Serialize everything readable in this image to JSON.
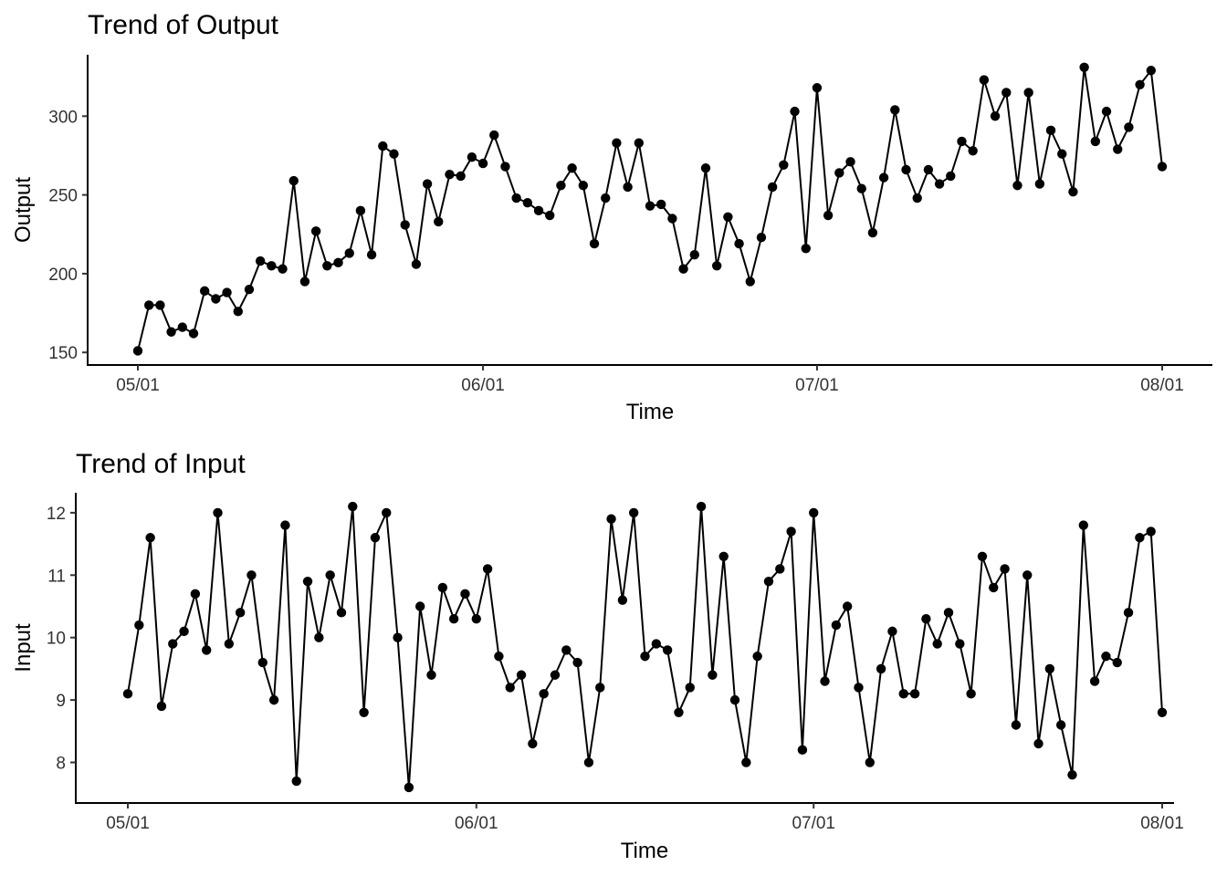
{
  "chart_data": [
    {
      "type": "line",
      "title": "Trend of Output",
      "xlabel": "Time",
      "ylabel": "Output",
      "x_start": "2023-05-01",
      "x_end": "2023-08-01",
      "x_ticks": [
        {
          "date": "2023-05-01",
          "label": "05/01"
        },
        {
          "date": "2023-06-01",
          "label": "06/01"
        },
        {
          "date": "2023-07-01",
          "label": "07/01"
        },
        {
          "date": "2023-08-01",
          "label": "08/01"
        }
      ],
      "y_ticks": [
        150,
        200,
        250,
        300
      ],
      "ylim": [
        142,
        339
      ],
      "grid": false,
      "values": [
        151,
        180,
        180,
        163,
        166,
        162,
        189,
        184,
        188,
        176,
        190,
        208,
        205,
        203,
        259,
        195,
        227,
        205,
        207,
        213,
        240,
        212,
        281,
        276,
        231,
        206,
        257,
        233,
        263,
        262,
        274,
        270,
        288,
        268,
        248,
        245,
        240,
        237,
        256,
        267,
        256,
        219,
        248,
        283,
        255,
        283,
        243,
        244,
        235,
        203,
        212,
        267,
        205,
        236,
        219,
        195,
        223,
        255,
        269,
        303,
        216,
        318,
        237,
        264,
        271,
        254,
        226,
        261,
        304,
        266,
        248,
        266,
        257,
        262,
        284,
        278,
        323,
        300,
        315,
        256,
        315,
        257,
        291,
        276,
        252,
        331,
        284,
        303,
        279,
        293,
        320,
        329,
        268
      ]
    },
    {
      "type": "line",
      "title": "Trend of Input",
      "xlabel": "Time",
      "ylabel": "Input",
      "x_start": "2023-05-01",
      "x_end": "2023-08-01",
      "x_ticks": [
        {
          "date": "2023-05-01",
          "label": "05/01"
        },
        {
          "date": "2023-06-01",
          "label": "06/01"
        },
        {
          "date": "2023-07-01",
          "label": "07/01"
        },
        {
          "date": "2023-08-01",
          "label": "08/01"
        }
      ],
      "y_ticks": [
        8,
        9,
        10,
        11,
        12
      ],
      "ylim": [
        7.35,
        12.32
      ],
      "grid": false,
      "values": [
        9.1,
        10.2,
        11.6,
        8.9,
        9.9,
        10.1,
        10.7,
        9.8,
        12.0,
        9.9,
        10.4,
        11.0,
        9.6,
        9.0,
        11.8,
        7.7,
        10.9,
        10.0,
        11.0,
        10.4,
        12.1,
        8.8,
        11.6,
        12.0,
        10.0,
        7.6,
        10.5,
        9.4,
        10.8,
        10.3,
        10.7,
        10.3,
        11.1,
        9.7,
        9.2,
        9.4,
        8.3,
        9.1,
        9.4,
        9.8,
        9.6,
        8.0,
        9.2,
        11.9,
        10.6,
        12.0,
        9.7,
        9.9,
        9.8,
        8.8,
        9.2,
        12.1,
        9.4,
        11.3,
        9.0,
        8.0,
        9.7,
        10.9,
        11.1,
        11.7,
        8.2,
        12.0,
        9.3,
        10.2,
        10.5,
        9.2,
        8.0,
        9.5,
        10.1,
        9.1,
        9.1,
        10.3,
        9.9,
        10.4,
        9.9,
        9.1,
        11.3,
        10.8,
        11.1,
        8.6,
        11.0,
        8.3,
        9.5,
        8.6,
        7.8,
        11.8,
        9.3,
        9.7,
        9.6,
        10.4,
        11.6,
        11.7,
        8.8
      ]
    }
  ]
}
